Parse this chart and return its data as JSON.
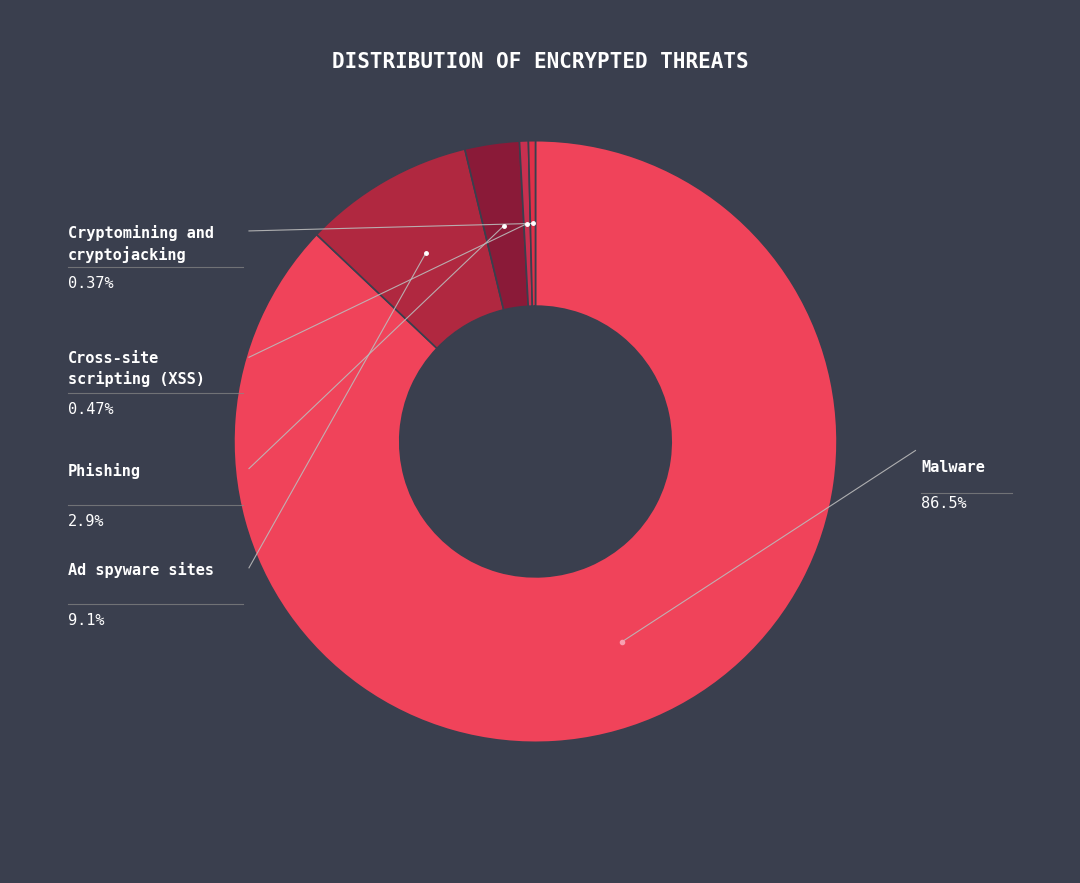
{
  "title": "DISTRIBUTION OF ENCRYPTED THREATS",
  "background_color": "#3a3f4e",
  "categories": [
    "Malware",
    "Ad spyware sites",
    "Phishing",
    "Cross-site\nscripting (XSS)",
    "Cryptomining and\ncryptojacking"
  ],
  "values": [
    86.5,
    9.1,
    2.9,
    0.47,
    0.37
  ],
  "colors": [
    "#f0435a",
    "#b02840",
    "#8a1a38",
    "#c83050",
    "#e03048"
  ],
  "text_color": "#ffffff",
  "wedge_edge_color": "#3a3f4e",
  "title_fontsize": 15,
  "label_fontsize": 11,
  "pct_fontsize": 11
}
